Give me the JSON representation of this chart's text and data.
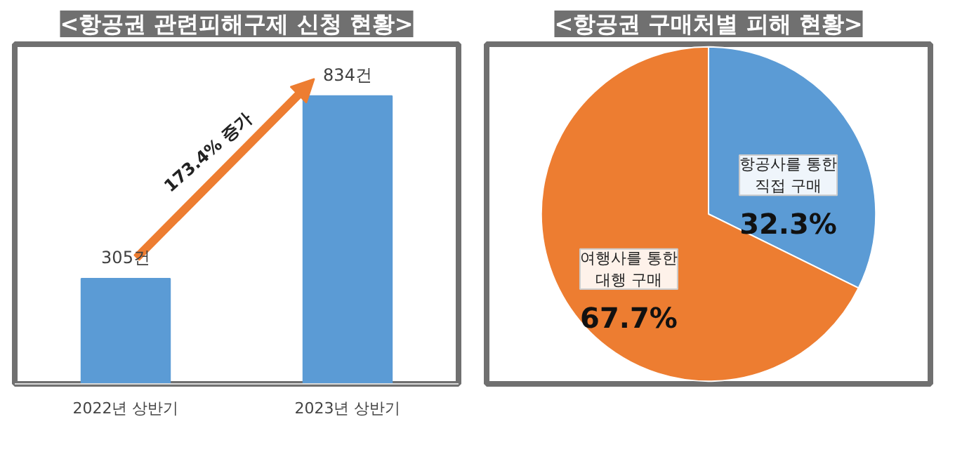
{
  "chart_data": [
    {
      "type": "bar",
      "title": "<항공권 관련피해구제 신청 현황>",
      "categories": [
        "2022년 상반기",
        "2023년 상반기"
      ],
      "values": [
        305,
        834
      ],
      "value_labels": [
        "305건",
        "834건"
      ],
      "color": "#5b9bd5",
      "annotations": [
        "173.4% 증가"
      ],
      "grid": false
    },
    {
      "type": "pie",
      "title": "<항공권 구매처별 피해 현황>",
      "categories": [
        "항공사를 통한\n직접 구매",
        "여행사를 통한\n대행 구매"
      ],
      "values": [
        32.3,
        67.7
      ],
      "colors": [
        "#5b9bd5",
        "#ed7d31"
      ],
      "value_labels": [
        "32.3%",
        "67.7%"
      ]
    }
  ]
}
